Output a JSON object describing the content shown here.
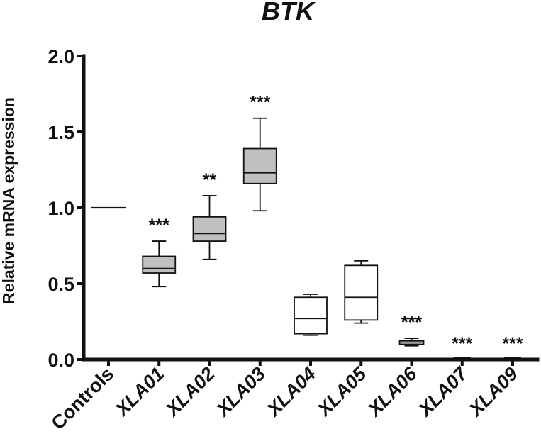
{
  "chart_data": {
    "type": "box",
    "title": "BTK",
    "xlabel": "",
    "ylabel": "Relative mRNA expression",
    "ylim": [
      0,
      2.0
    ],
    "yticks": [
      "0.0",
      "0.5",
      "1.0",
      "1.5",
      "2.0"
    ],
    "categories": [
      "Controls",
      "XLA01",
      "XLA02",
      "XLA03",
      "XLA04",
      "XLA05",
      "XLA06",
      "XLA07",
      "XLA09"
    ],
    "series": [
      {
        "name": "Controls",
        "min": 1.0,
        "q1": 1.0,
        "median": 1.0,
        "q3": 1.0,
        "max": 1.0,
        "fill": "none",
        "significance": ""
      },
      {
        "name": "XLA01",
        "min": 0.48,
        "q1": 0.57,
        "median": 0.6,
        "q3": 0.68,
        "max": 0.78,
        "fill": "#c0c0c0",
        "significance": "***"
      },
      {
        "name": "XLA02",
        "min": 0.66,
        "q1": 0.78,
        "median": 0.83,
        "q3": 0.94,
        "max": 1.08,
        "fill": "#c0c0c0",
        "significance": "**"
      },
      {
        "name": "XLA03",
        "min": 0.98,
        "q1": 1.16,
        "median": 1.23,
        "q3": 1.39,
        "max": 1.59,
        "fill": "#c0c0c0",
        "significance": "***"
      },
      {
        "name": "XLA04",
        "min": 0.16,
        "q1": 0.17,
        "median": 0.27,
        "q3": 0.41,
        "max": 0.43,
        "fill": "#ffffff",
        "significance": ""
      },
      {
        "name": "XLA05",
        "min": 0.24,
        "q1": 0.26,
        "median": 0.41,
        "q3": 0.62,
        "max": 0.65,
        "fill": "#ffffff",
        "significance": ""
      },
      {
        "name": "XLA06",
        "min": 0.09,
        "q1": 0.1,
        "median": 0.115,
        "q3": 0.125,
        "max": 0.14,
        "fill": "#c0c0c0",
        "significance": "***"
      },
      {
        "name": "XLA07",
        "min": 0.0,
        "q1": 0.0,
        "median": 0.0,
        "q3": 0.0,
        "max": 0.0,
        "fill": "#c0c0c0",
        "significance": "***"
      },
      {
        "name": "XLA09",
        "min": 0.0,
        "q1": 0.0,
        "median": 0.0,
        "q3": 0.0,
        "max": 0.0,
        "fill": "#c0c0c0",
        "significance": "***"
      }
    ],
    "grid": false,
    "legend": "none"
  },
  "colors": {
    "axis": "#111111",
    "gray_box": "#c0c0c0",
    "white_box": "#ffffff"
  }
}
